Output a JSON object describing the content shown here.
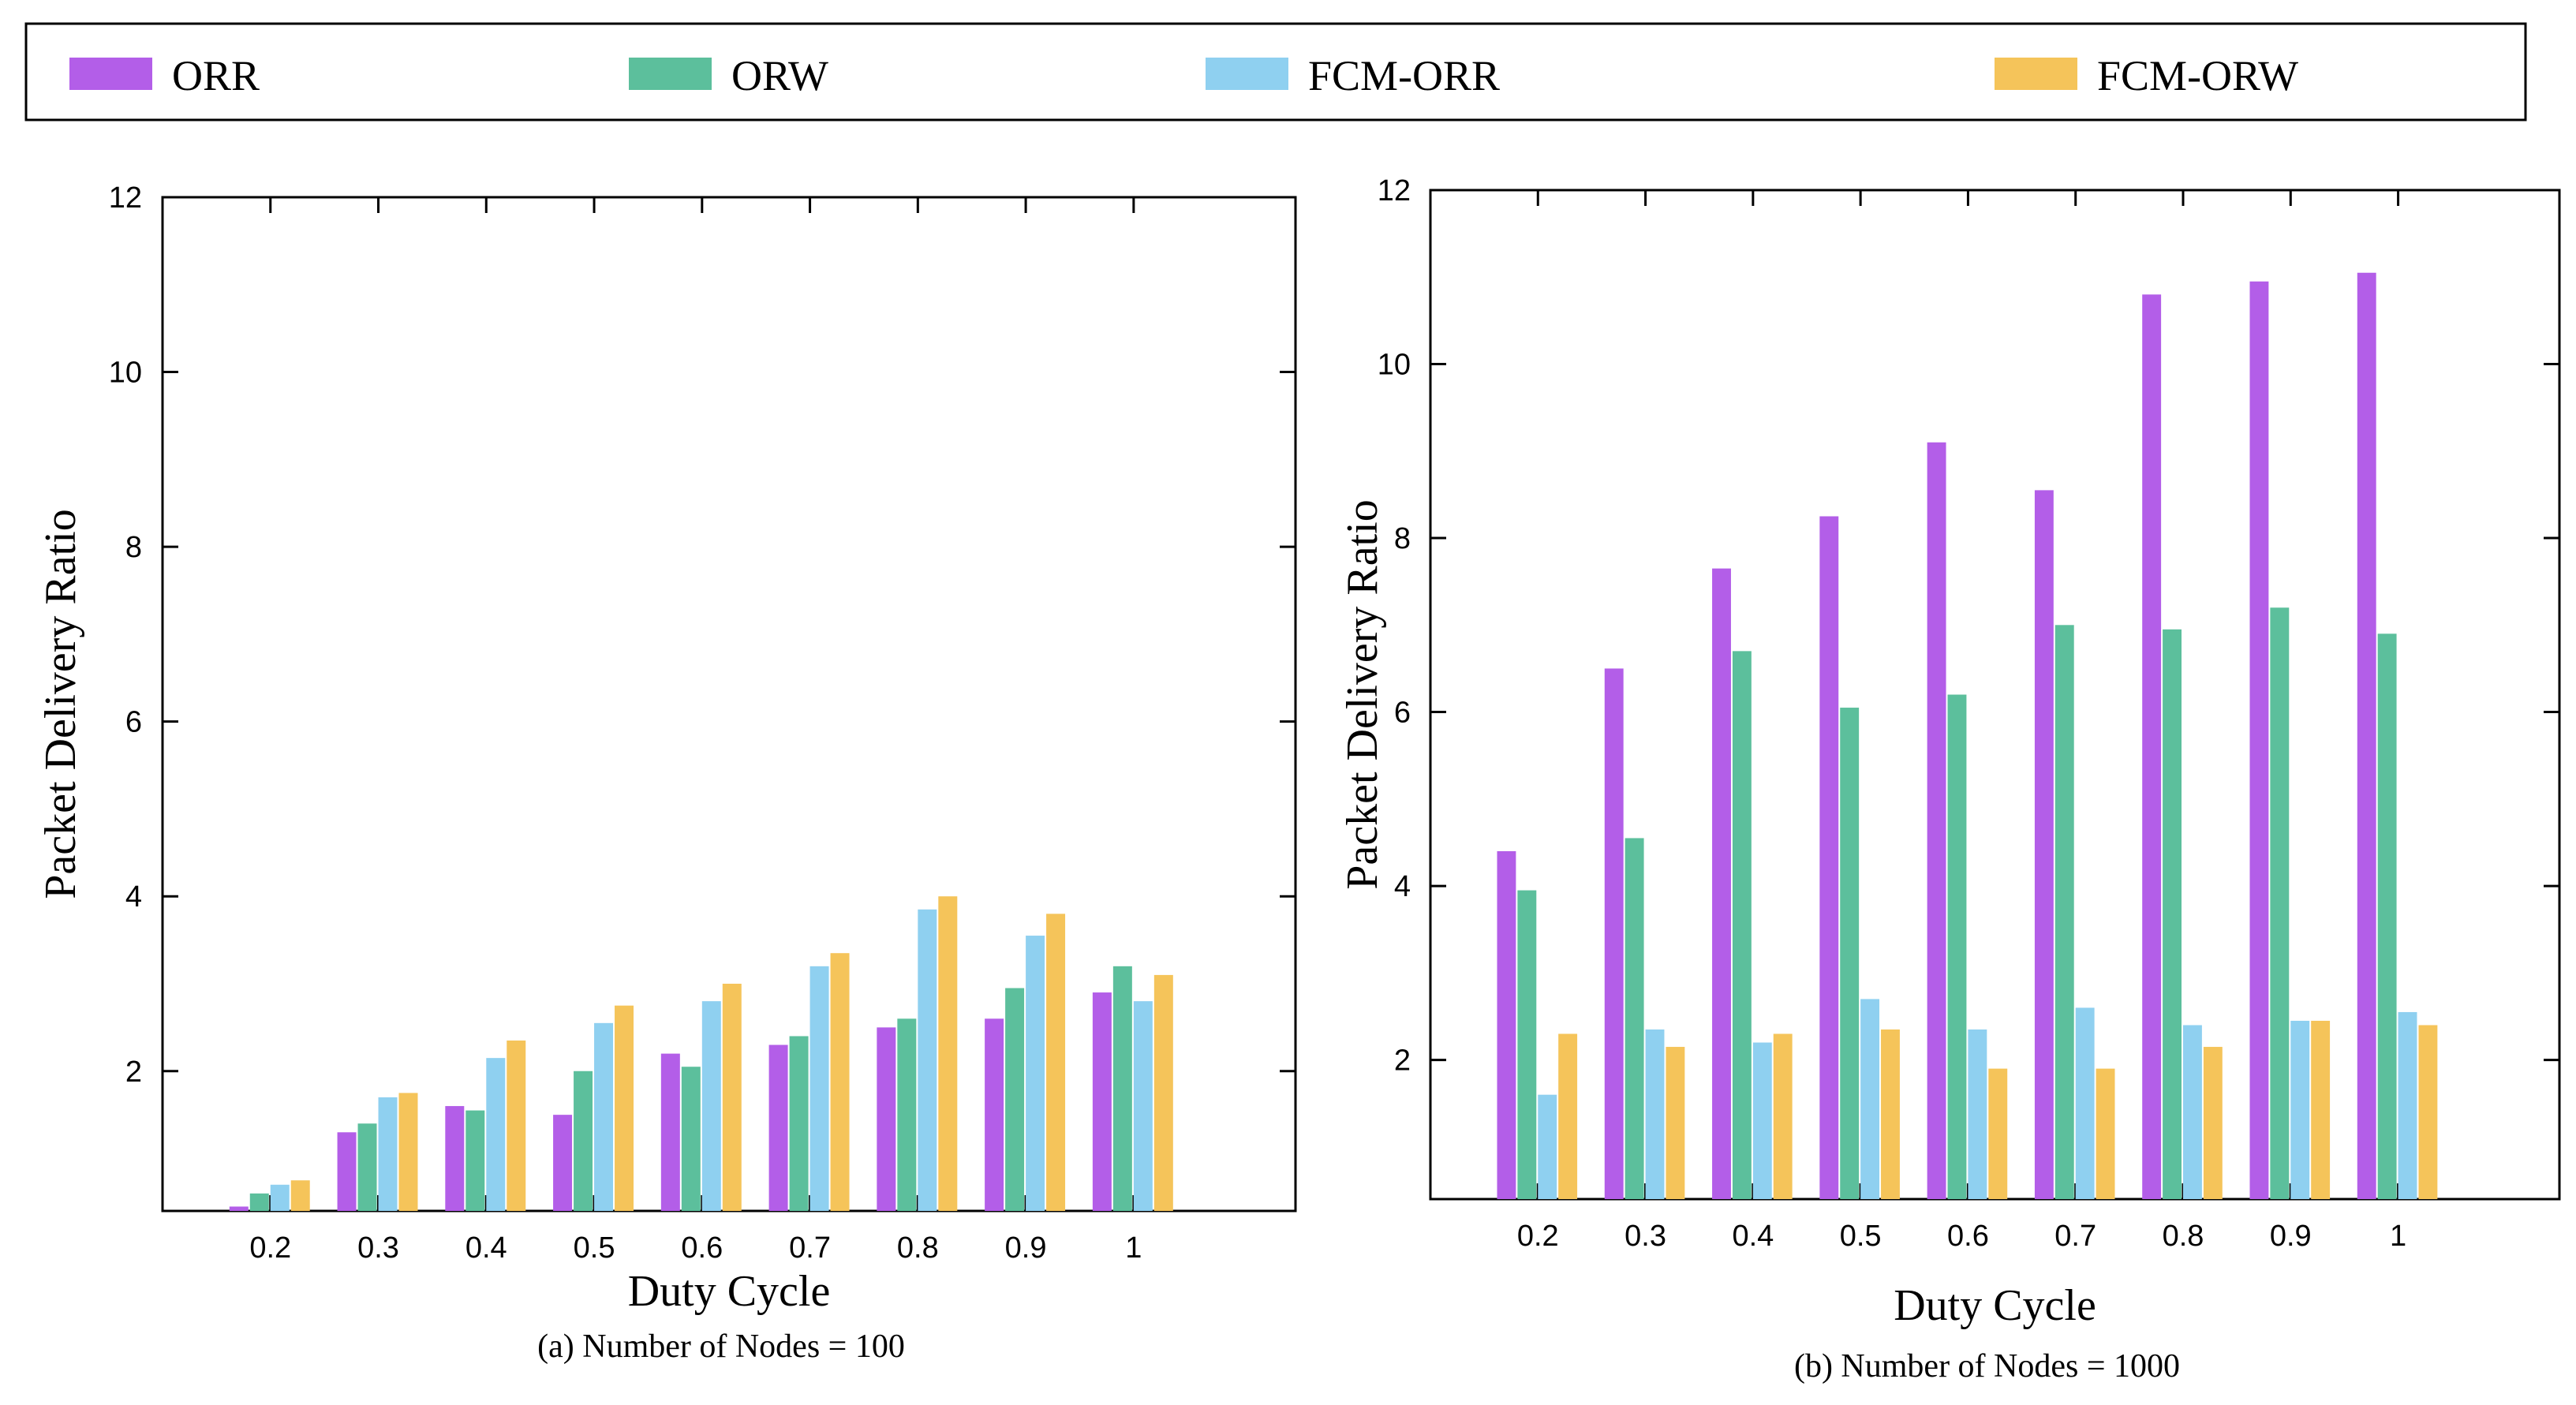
{
  "legend": {
    "placement": "top",
    "items": [
      {
        "name": "ORR",
        "color": "#b35ee8"
      },
      {
        "name": "ORW",
        "color": "#5cbf9c"
      },
      {
        "name": "FCM-ORR",
        "color": "#8fd0f0"
      },
      {
        "name": "FCM-ORW",
        "color": "#f5c45a"
      }
    ]
  },
  "chart_data": [
    {
      "type": "bar",
      "caption": "(a) Number of Nodes = 100",
      "xlabel": "Duty Cycle",
      "ylabel": "Packet Delivery Ratio",
      "ylim": [
        0.4,
        12
      ],
      "yticks": [
        2,
        4,
        6,
        8,
        10,
        12
      ],
      "categories": [
        "0.2",
        "0.3",
        "0.4",
        "0.5",
        "0.6",
        "0.7",
        "0.8",
        "0.9",
        "1"
      ],
      "grid": false,
      "series": [
        {
          "name": "ORR",
          "values": [
            0.45,
            1.3,
            1.6,
            1.5,
            2.2,
            2.3,
            2.5,
            2.6,
            2.9
          ]
        },
        {
          "name": "ORW",
          "values": [
            0.6,
            1.4,
            1.55,
            2.0,
            2.05,
            2.4,
            2.6,
            2.95,
            3.2
          ]
        },
        {
          "name": "FCM-ORR",
          "values": [
            0.7,
            1.7,
            2.15,
            2.55,
            2.8,
            3.2,
            3.85,
            3.55,
            2.8
          ]
        },
        {
          "name": "FCM-ORW",
          "values": [
            0.75,
            1.75,
            2.35,
            2.75,
            3.0,
            3.35,
            4.0,
            3.8,
            3.1
          ]
        }
      ]
    },
    {
      "type": "bar",
      "caption": "(b) Number of Nodes = 1000",
      "xlabel": "Duty Cycle",
      "ylabel": "Packet Delivery Ratio",
      "ylim": [
        0.4,
        12
      ],
      "yticks": [
        2,
        4,
        6,
        8,
        10,
        12
      ],
      "categories": [
        "0.2",
        "0.3",
        "0.4",
        "0.5",
        "0.6",
        "0.7",
        "0.8",
        "0.9",
        "1"
      ],
      "grid": false,
      "series": [
        {
          "name": "ORR",
          "values": [
            4.4,
            6.5,
            7.65,
            8.25,
            9.1,
            8.55,
            10.8,
            10.95,
            11.05
          ]
        },
        {
          "name": "ORW",
          "values": [
            3.95,
            4.55,
            6.7,
            6.05,
            6.2,
            7.0,
            6.95,
            7.2,
            6.9
          ]
        },
        {
          "name": "FCM-ORR",
          "values": [
            1.6,
            2.35,
            2.2,
            2.7,
            2.35,
            2.6,
            2.4,
            2.45,
            2.55
          ]
        },
        {
          "name": "FCM-ORW",
          "values": [
            2.3,
            2.15,
            2.3,
            2.35,
            1.9,
            1.9,
            2.15,
            2.45,
            2.4
          ]
        }
      ]
    }
  ]
}
